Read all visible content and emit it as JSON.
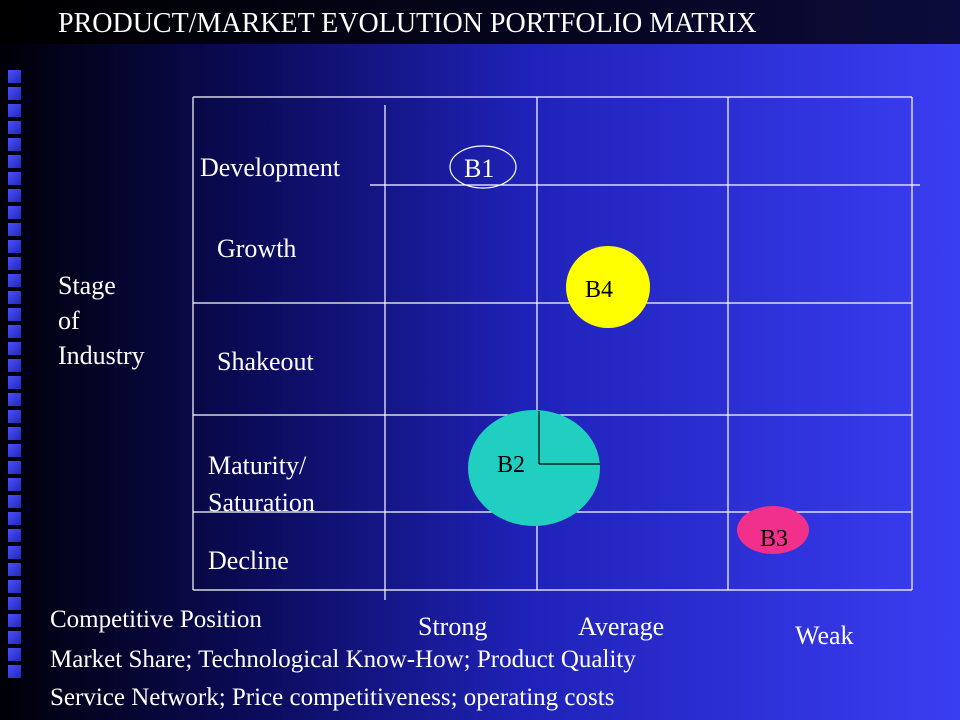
{
  "title": "PRODUCT/MARKET EVOLUTION PORTFOLIO MATRIX",
  "y_axis": {
    "label_lines": [
      "Stage",
      "of",
      "Industry"
    ]
  },
  "stages": [
    "Development",
    "Growth",
    "Shakeout",
    "Maturity/",
    "Saturation",
    "Decline"
  ],
  "x_axis": {
    "heading": "Competitive Position",
    "categories": [
      "Strong",
      "Average",
      "Weak"
    ],
    "criteria_line1": "Market Share; Technological Know-How; Product Quality",
    "criteria_line2": "Service Network; Price competitiveness; operating costs"
  },
  "businesses": [
    {
      "id": "B1",
      "stage": "Development",
      "position": "Strong",
      "fill": "none"
    },
    {
      "id": "B4",
      "stage": "Growth",
      "position": "Average",
      "fill": "#ffff00"
    },
    {
      "id": "B2",
      "stage": "Maturity/Saturation",
      "position": "Strong",
      "fill": "#20cfc0"
    },
    {
      "id": "B3",
      "stage": "Decline",
      "position": "Weak",
      "fill": "#f0308a"
    }
  ],
  "colors": {
    "background_start": "#000008",
    "background_end": "#3a3ef2",
    "grid": "#ffffff"
  }
}
